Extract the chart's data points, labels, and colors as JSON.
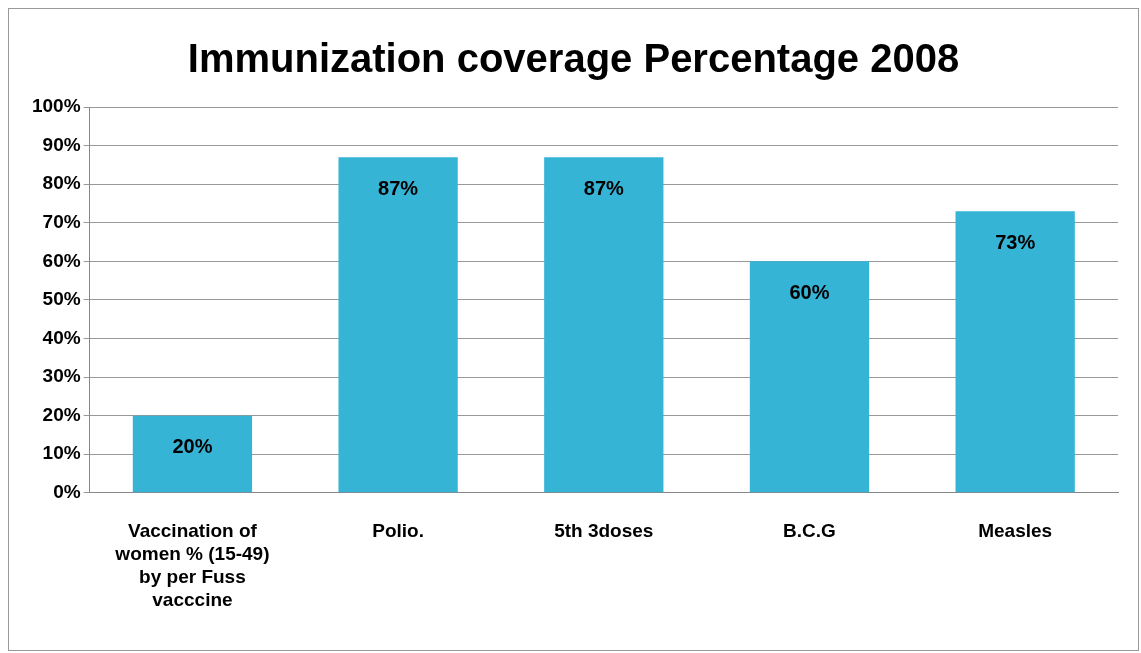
{
  "chart_data": {
    "type": "bar",
    "title": "Immunization coverage Percentage 2008",
    "categories": [
      "Vaccination of women % (15-49) by per Fuss vacccine",
      "Polio.",
      "5th 3doses",
      "B.C.G",
      "Measles"
    ],
    "values": [
      20,
      87,
      87,
      60,
      73
    ],
    "value_labels": [
      "20%",
      "87%",
      "87%",
      "60%",
      "73%"
    ],
    "color": "#36b4d6",
    "ylim": [
      0,
      100
    ],
    "yticks": [
      {
        "value": 0,
        "label": "0%"
      },
      {
        "value": 10,
        "label": "10%"
      },
      {
        "value": 20,
        "label": "20%"
      },
      {
        "value": 30,
        "label": "30%"
      },
      {
        "value": 40,
        "label": "40%"
      },
      {
        "value": 50,
        "label": "50%"
      },
      {
        "value": 60,
        "label": "60%"
      },
      {
        "value": 70,
        "label": "70%"
      },
      {
        "value": 80,
        "label": "80%"
      },
      {
        "value": 90,
        "label": "90%"
      },
      {
        "value": 100,
        "label": "100%"
      }
    ],
    "grid": "y",
    "legend": false
  }
}
